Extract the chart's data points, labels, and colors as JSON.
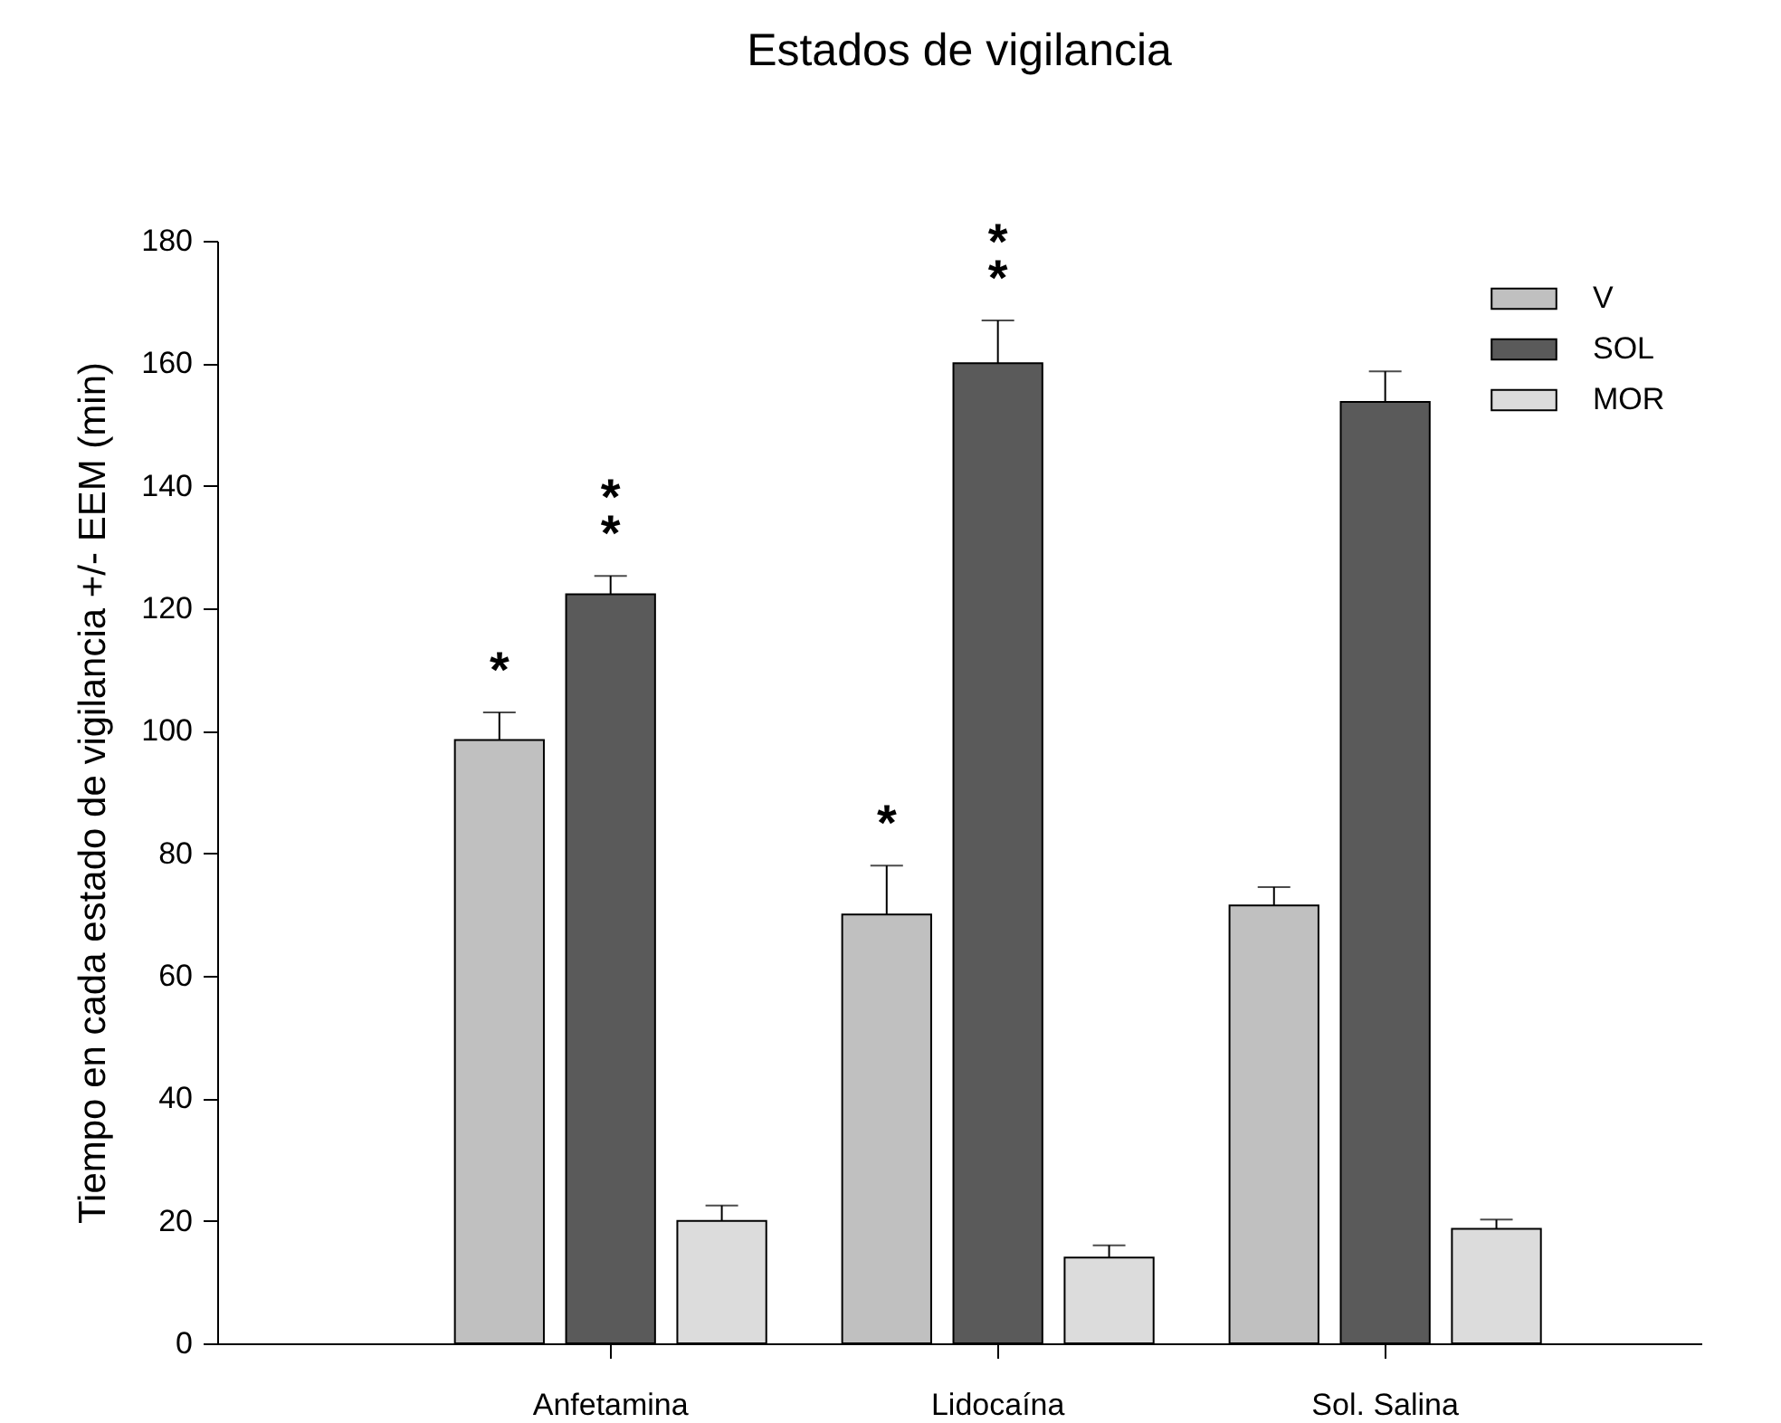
{
  "chart_data": {
    "type": "bar",
    "title": "Estados de vigilancia",
    "ylabel": "Tiempo en cada estado de vigilancia +/- EEM (min)",
    "categories": [
      "Anfetamina",
      "Lidocaína",
      "Sol. Salina"
    ],
    "series": [
      {
        "name": "V",
        "color": "#c0c0c0",
        "values": [
          98.5,
          70,
          71.5
        ],
        "errors": [
          [
            98.5,
            103
          ],
          [
            70,
            78
          ],
          [
            71.5,
            74.5
          ]
        ]
      },
      {
        "name": "SOL",
        "color": "#5a5a5a",
        "values": [
          122.3,
          160,
          153.7
        ],
        "errors": [
          [
            122.3,
            125.3
          ],
          [
            160,
            167
          ],
          [
            153.7,
            158.7
          ]
        ]
      },
      {
        "name": "MOR",
        "color": "#dcdcdc",
        "values": [
          20,
          14,
          18.7
        ],
        "errors": [
          [
            20,
            22.5
          ],
          [
            14,
            16
          ],
          [
            18.7,
            20.2
          ]
        ]
      }
    ],
    "ylim": [
      0,
      180
    ],
    "yticks": [
      0,
      20,
      40,
      60,
      80,
      100,
      120,
      140,
      160,
      180
    ],
    "legend": "top right",
    "annotations": [
      "*",
      "*",
      "*",
      "*",
      "*",
      "*"
    ]
  }
}
